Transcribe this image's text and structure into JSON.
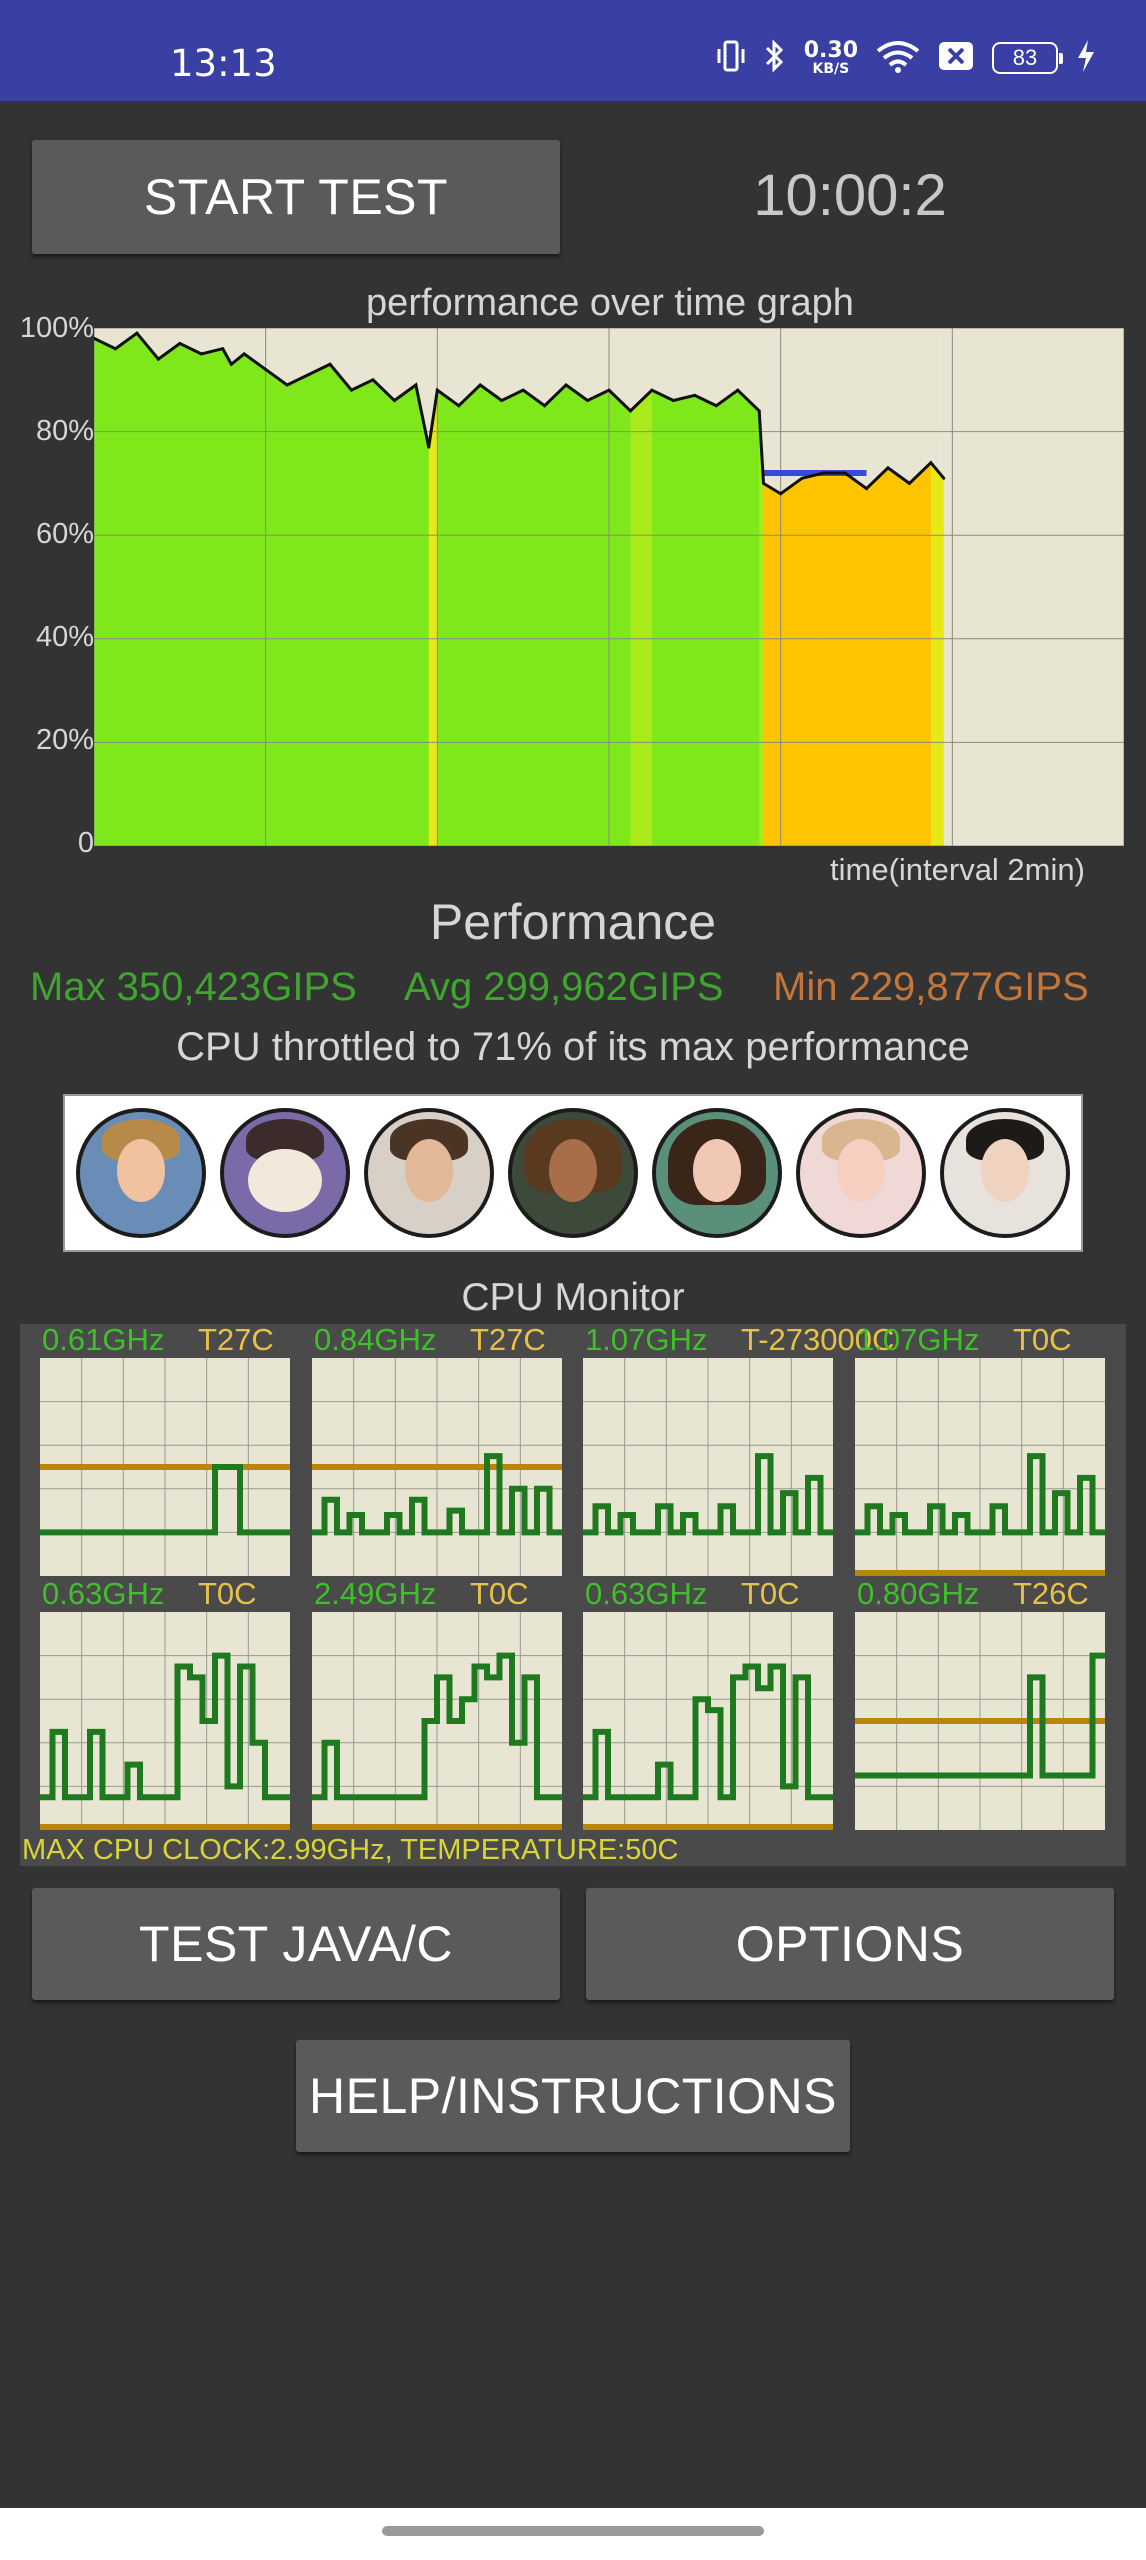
{
  "status_bar": {
    "time": "13:13",
    "net_speed_value": "0.30",
    "net_speed_unit": "KB/S",
    "battery_level": "83",
    "icons": [
      "vibrate-icon",
      "bluetooth-icon",
      "wifi-icon",
      "sim-off-icon",
      "battery-icon",
      "charging-icon"
    ]
  },
  "controls": {
    "start_test_label": "START TEST",
    "timer": "10:00:2",
    "test_java_label": "TEST JAVA/C",
    "options_label": "OPTIONS",
    "help_label": "HELP/INSTRUCTIONS"
  },
  "graph": {
    "title": "performance over time graph",
    "x_caption": "time(interval 2min)",
    "y_ticks": [
      "100%",
      "80%",
      "60%",
      "40%",
      "20%",
      "0"
    ]
  },
  "chart_data": {
    "type": "line",
    "title": "performance over time graph",
    "xlabel": "time(interval 2min)",
    "ylabel": "",
    "ylim": [
      0,
      100
    ],
    "xlim_minutes": [
      0,
      12
    ],
    "grid": true,
    "x_minutes": [
      0.0,
      0.25,
      0.5,
      0.75,
      1.0,
      1.25,
      1.5,
      1.6,
      1.75,
      2.0,
      2.25,
      2.5,
      2.75,
      3.0,
      3.25,
      3.5,
      3.75,
      3.9,
      4.0,
      4.25,
      4.5,
      4.75,
      5.0,
      5.25,
      5.5,
      5.75,
      6.0,
      6.25,
      6.5,
      6.75,
      7.0,
      7.25,
      7.5,
      7.75,
      7.8,
      8.0,
      8.25,
      8.5,
      8.75,
      9.0,
      9.25,
      9.5,
      9.75,
      9.9
    ],
    "series": [
      {
        "values": [
          98,
          96,
          99,
          94,
          97,
          95,
          96,
          93,
          95,
          92,
          89,
          91,
          93,
          88,
          90,
          86,
          89,
          77,
          88,
          85,
          89,
          86,
          88,
          85,
          89,
          86,
          88,
          84,
          88,
          86,
          87,
          85,
          88,
          84,
          70,
          68,
          71,
          72,
          72,
          69,
          73,
          70,
          74,
          71
        ]
      }
    ],
    "max_line": 72
  },
  "performance": {
    "title": "Performance",
    "max": "Max 350,423GIPS",
    "avg": "Avg 299,962GIPS",
    "min": "Min 229,877GIPS",
    "throttle_text": "CPU throttled to 71% of its max performance"
  },
  "avatars": [
    "avatar-1",
    "avatar-2",
    "avatar-3",
    "avatar-4",
    "avatar-5",
    "avatar-6",
    "avatar-7"
  ],
  "cpu_monitor": {
    "title": "CPU Monitor",
    "cores": [
      {
        "freq": "0.61GHz",
        "temp": "T27C"
      },
      {
        "freq": "0.84GHz",
        "temp": "T27C"
      },
      {
        "freq": "1.07GHz",
        "temp": "T-273000C"
      },
      {
        "freq": "1.07GHz",
        "temp": "T0C"
      },
      {
        "freq": "0.63GHz",
        "temp": "T0C"
      },
      {
        "freq": "2.49GHz",
        "temp": "T0C"
      },
      {
        "freq": "0.63GHz",
        "temp": "T0C"
      },
      {
        "freq": "0.80GHz",
        "temp": "T26C"
      }
    ],
    "footer": "MAX CPU CLOCK:2.99GHz, TEMPERATURE:50C"
  },
  "colors": {
    "status_bar": "#3a3fa3",
    "background": "#333333",
    "button": "#5a5a5a",
    "max_green": "#3fa52f",
    "min_orange": "#c5763a",
    "cpu_line": "#1f7a1f",
    "cpu_ref": "#b8860b"
  }
}
